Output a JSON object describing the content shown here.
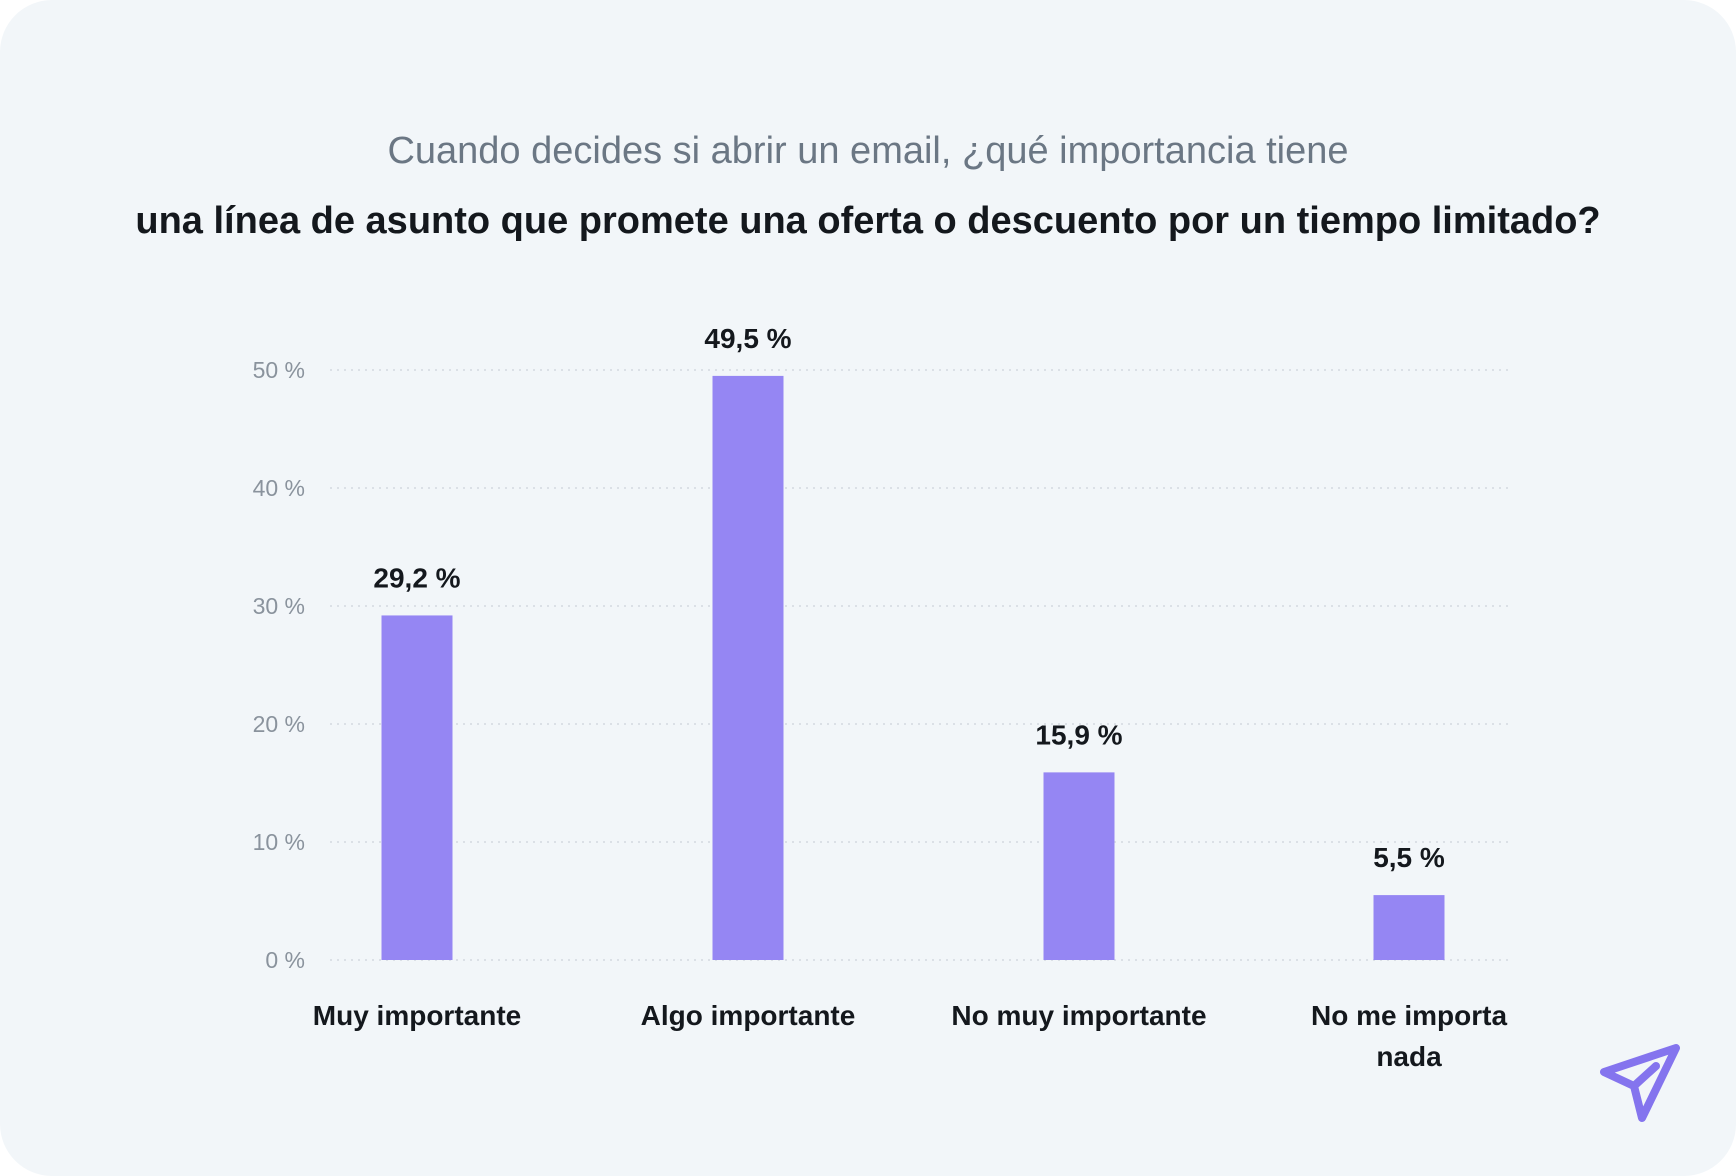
{
  "chart_data": {
    "type": "bar",
    "title_line1": "Cuando decides si abrir un email, ¿qué importancia tiene",
    "title_line2": "una línea de asunto que promete una oferta o descuento por un tiempo limitado?",
    "categories": [
      [
        "Muy importante"
      ],
      [
        "Algo importante"
      ],
      [
        "No muy importante"
      ],
      [
        "No me importa",
        "nada"
      ]
    ],
    "values": [
      29.2,
      49.5,
      15.9,
      5.5
    ],
    "value_labels": [
      "29,2 %",
      "49,5 %",
      "15,9 %",
      "5,5 %"
    ],
    "y_ticks": [
      0,
      10,
      20,
      30,
      40,
      50
    ],
    "y_tick_labels": [
      "0 %",
      "10 %",
      "20 %",
      "30 %",
      "40 %",
      "50 %"
    ],
    "ylim": [
      0,
      50
    ],
    "grid": true,
    "xlabel": "",
    "ylabel": ""
  },
  "colors": {
    "bar": "#9586f3",
    "background": "#f2f6f9",
    "grid": "#d3d9df",
    "tick_label": "#8a939d",
    "value_label": "#14181d",
    "category_label": "#14181d",
    "logo": "#8474ee"
  },
  "logo": {
    "icon": "paper-plane-icon"
  }
}
